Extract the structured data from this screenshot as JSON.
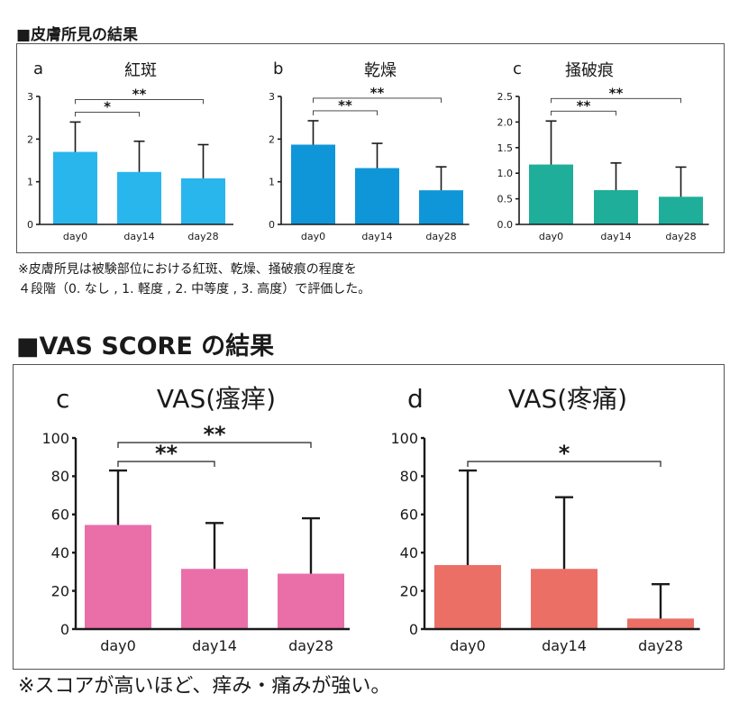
{
  "sections": {
    "skin": {
      "title": "■皮膚所見の結果",
      "note_line1": "※皮膚所見は被験部位における紅斑、乾燥、掻破痕の程度を",
      "note_line2": "４段階（0. なし , 1. 軽度 , 2. 中等度 , 3. 高度）で評価した。"
    },
    "vas": {
      "title": "■VAS SCORE の結果",
      "note": "※スコアが高いほど、痒み・痛みが強い。"
    }
  },
  "chart_data": [
    {
      "type": "bar",
      "letter": "a",
      "title": "紅斑",
      "categories": [
        "day0",
        "day14",
        "day28"
      ],
      "values": [
        1.7,
        1.23,
        1.08
      ],
      "error_upper": [
        2.4,
        1.95,
        1.87
      ],
      "ylim": [
        0,
        3
      ],
      "yticks": [
        "0",
        "1",
        "2",
        "3"
      ],
      "color": "#29b6ec",
      "significance": [
        {
          "from": 0,
          "to": 1,
          "label": "*"
        },
        {
          "from": 0,
          "to": 2,
          "label": "**"
        }
      ]
    },
    {
      "type": "bar",
      "letter": "b",
      "title": "乾燥",
      "categories": [
        "day0",
        "day14",
        "day28"
      ],
      "values": [
        1.87,
        1.32,
        0.8
      ],
      "error_upper": [
        2.43,
        1.9,
        1.35
      ],
      "ylim": [
        0,
        3
      ],
      "yticks": [
        "0",
        "1",
        "2",
        "3"
      ],
      "color": "#0f96d8",
      "significance": [
        {
          "from": 0,
          "to": 1,
          "label": "**"
        },
        {
          "from": 0,
          "to": 2,
          "label": "**"
        }
      ]
    },
    {
      "type": "bar",
      "letter": "c",
      "title": "掻破痕",
      "categories": [
        "day0",
        "day14",
        "day28"
      ],
      "values": [
        1.17,
        0.67,
        0.54
      ],
      "error_upper": [
        2.02,
        1.2,
        1.12
      ],
      "ylim": [
        0,
        2.5
      ],
      "yticks": [
        "0.0",
        "0.5",
        "1.0",
        "1.5",
        "2.0",
        "2.5"
      ],
      "color": "#1fae9a",
      "significance": [
        {
          "from": 0,
          "to": 1,
          "label": "**"
        },
        {
          "from": 0,
          "to": 2,
          "label": "**"
        }
      ]
    },
    {
      "type": "bar",
      "letter": "c",
      "title": "VAS(瘙痒)",
      "categories": [
        "day0",
        "day14",
        "day28"
      ],
      "values": [
        54.5,
        31.5,
        29
      ],
      "error_upper": [
        83,
        55.5,
        58
      ],
      "ylim": [
        0,
        100
      ],
      "yticks": [
        "0",
        "20",
        "40",
        "60",
        "80",
        "100"
      ],
      "color": "#ea6fa9",
      "significance": [
        {
          "from": 0,
          "to": 1,
          "label": "**"
        },
        {
          "from": 0,
          "to": 2,
          "label": "**"
        }
      ]
    },
    {
      "type": "bar",
      "letter": "d",
      "title": "VAS(疼痛)",
      "categories": [
        "day0",
        "day14",
        "day28"
      ],
      "values": [
        33.5,
        31.5,
        5.5
      ],
      "error_upper": [
        83,
        69,
        23.5
      ],
      "ylim": [
        0,
        100
      ],
      "yticks": [
        "0",
        "20",
        "40",
        "60",
        "80",
        "100"
      ],
      "color": "#ec6f66",
      "significance": [
        {
          "from": 0,
          "to": 2,
          "label": "*"
        }
      ]
    }
  ]
}
